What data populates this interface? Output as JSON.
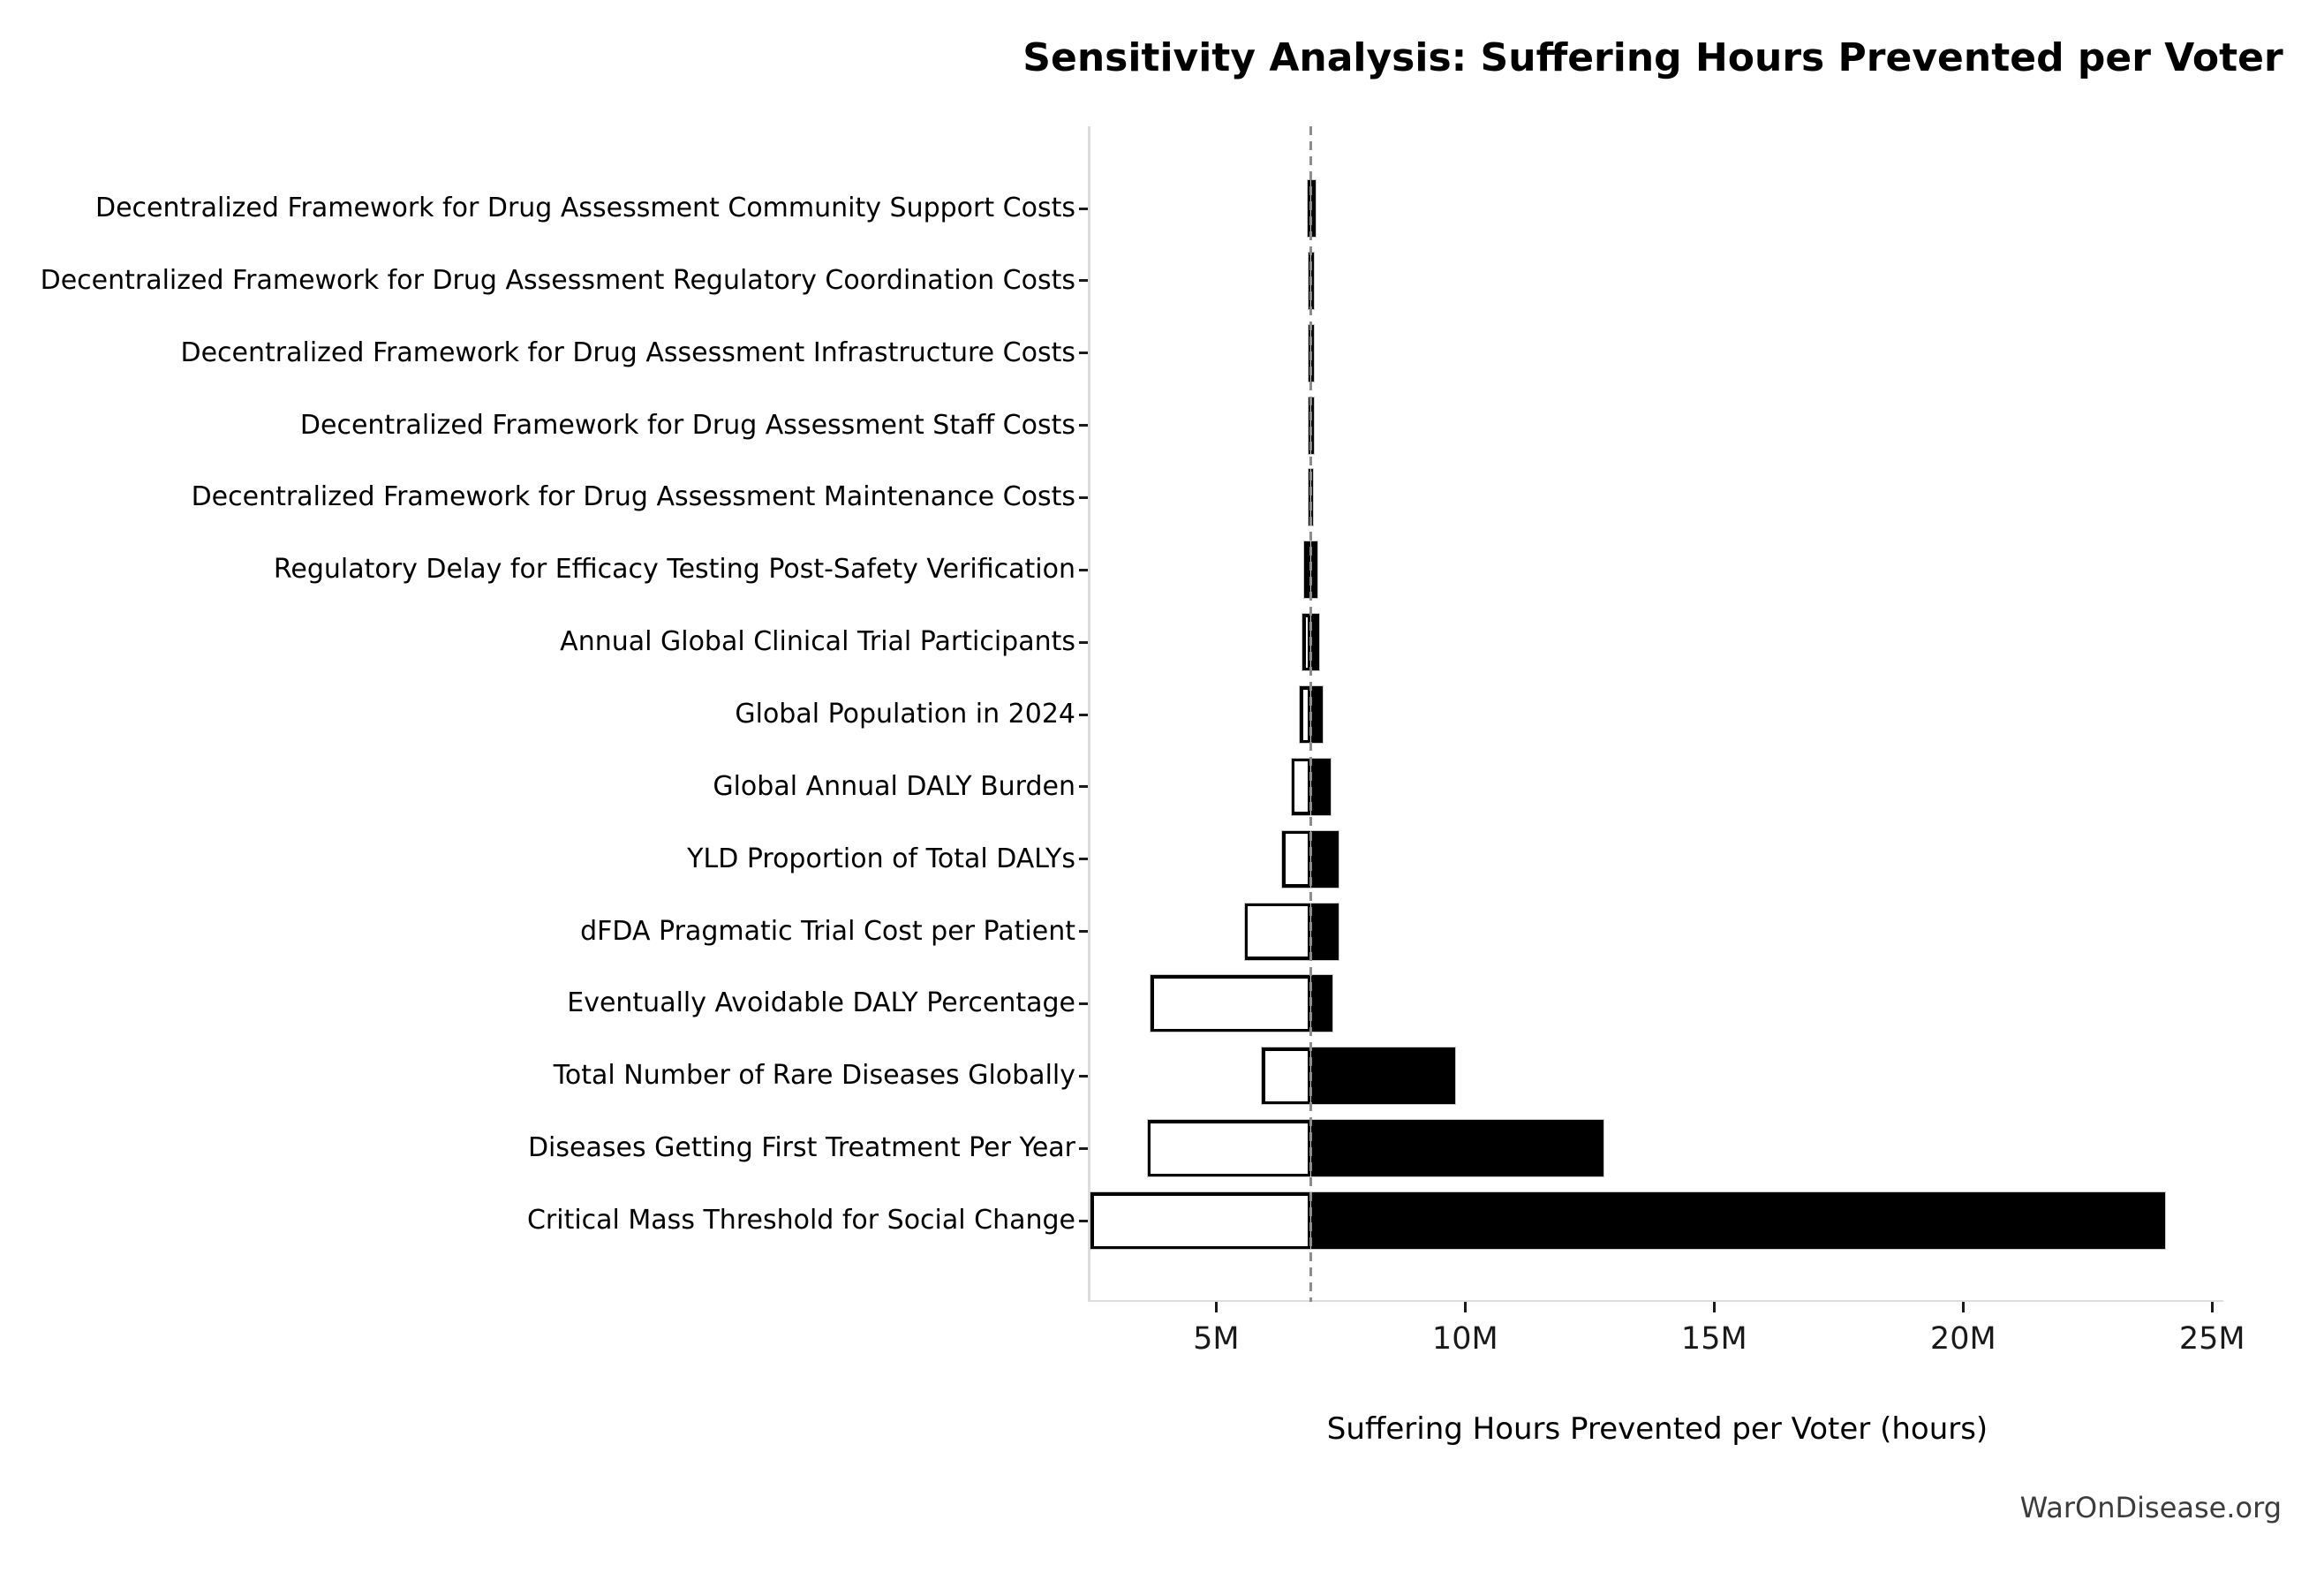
{
  "chart_data": {
    "type": "bar",
    "variant": "tornado-sensitivity",
    "title": "Sensitivity Analysis: Suffering Hours Prevented per Voter",
    "xlabel": "Suffering Hours Prevented per Voter (hours)",
    "watermark": "WarOnDisease.org",
    "value_unit": "millions of hours",
    "xlim": [
      2.45,
      25.12
    ],
    "baseline_value": 6.9,
    "grid": false,
    "legend": null,
    "colors": {
      "high_bar_fill": "#000000",
      "low_bar_fill": "#ffffff",
      "low_bar_edge": "#000000",
      "bar_outline": "#c9c9c9",
      "baseline_line": "#8c8c8c",
      "spine": "#dcdcdc",
      "tick": "#1a1a1a",
      "watermark_text": "#3c3c3c"
    },
    "xticks": [
      {
        "value": 5,
        "label": "5M"
      },
      {
        "value": 10,
        "label": "10M"
      },
      {
        "value": 15,
        "label": "15M"
      },
      {
        "value": 20,
        "label": "20M"
      },
      {
        "value": 25,
        "label": "25M"
      }
    ],
    "rows": [
      {
        "label": "Decentralized Framework for Drug Assessment Community Support Costs",
        "low": 6.84,
        "high": 7.0
      },
      {
        "label": "Decentralized Framework for Drug Assessment Regulatory Coordination Costs",
        "low": 6.85,
        "high": 6.97
      },
      {
        "label": "Decentralized Framework for Drug Assessment Infrastructure Costs",
        "low": 6.85,
        "high": 6.96
      },
      {
        "label": "Decentralized Framework for Drug Assessment Staff Costs",
        "low": 6.85,
        "high": 6.96
      },
      {
        "label": "Decentralized Framework for Drug Assessment Maintenance Costs",
        "low": 6.85,
        "high": 6.95
      },
      {
        "label": "Regulatory Delay for Efficacy Testing Post-Safety Verification",
        "low": 6.77,
        "high": 7.04
      },
      {
        "label": "Annual Global Clinical Trial Participants",
        "low": 6.74,
        "high": 7.06
      },
      {
        "label": "Global Population in 2024",
        "low": 6.68,
        "high": 7.13
      },
      {
        "label": "Global Annual DALY Burden",
        "low": 6.51,
        "high": 7.3
      },
      {
        "label": "YLD Proportion of Total DALYs",
        "low": 6.33,
        "high": 7.45
      },
      {
        "label": "dFDA Pragmatic Trial Cost per Patient",
        "low": 5.57,
        "high": 7.45
      },
      {
        "label": "Eventually Avoidable DALY Percentage",
        "low": 3.69,
        "high": 7.34
      },
      {
        "label": "Total Number of Rare Diseases Globally",
        "low": 5.92,
        "high": 9.79
      },
      {
        "label": "Diseases Getting First Treatment Per Year",
        "low": 3.62,
        "high": 12.77
      },
      {
        "label": "Critical Mass Threshold for Social Change",
        "low": 2.48,
        "high": 24.06
      }
    ]
  }
}
